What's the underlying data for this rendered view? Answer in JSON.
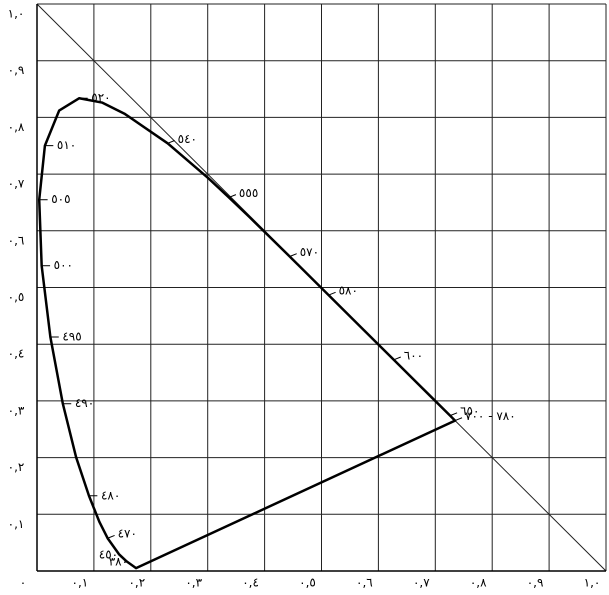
{
  "chart_data": {
    "type": "line",
    "x": [
      0.1741,
      0.1566,
      0.144,
      0.1241,
      0.1096,
      0.0913,
      0.0687,
      0.0454,
      0.0235,
      0.0082,
      0.0039,
      0.0139,
      0.0389,
      0.0743,
      0.1142,
      0.1547,
      0.2296,
      0.3016,
      0.3373,
      0.3731,
      0.4441,
      0.5125,
      0.627,
      0.6915,
      0.726,
      0.7347
    ],
    "series": [
      {
        "color": "#000000",
        "values": [
          0.005,
          0.0177,
          0.0297,
          0.0578,
          0.0868,
          0.1327,
          0.2007,
          0.295,
          0.4127,
          0.5384,
          0.6548,
          0.7502,
          0.812,
          0.8338,
          0.8262,
          0.8059,
          0.7543,
          0.6923,
          0.6589,
          0.6245,
          0.5547,
          0.4866,
          0.3725,
          0.3083,
          0.274,
          0.2653
        ],
        "point_labels": [
          "٣٨٠",
          "٤٥٠",
          null,
          "٤٧٠",
          null,
          "٤٨٠",
          null,
          "٤٩٠",
          "٤٩٥",
          "٥٠٠",
          "٥٠٥",
          "٥١٠",
          null,
          "٥٢٠",
          null,
          null,
          "٥٤٠",
          null,
          "٥٥٥",
          null,
          "٥٧٠",
          "٥٨٠",
          "٦٠٠",
          null,
          "٦٥٠",
          "٧٨٠ - ٧٠٠"
        ]
      }
    ],
    "xlim": [
      0,
      1
    ],
    "ylim": [
      0,
      1
    ],
    "xticks": [
      {
        "value": 0,
        "label": "٠"
      },
      {
        "value": 0.1,
        "label": "٠,١"
      },
      {
        "value": 0.2,
        "label": "٠,٢"
      },
      {
        "value": 0.3,
        "label": "٠,٣"
      },
      {
        "value": 0.4,
        "label": "٠,٤"
      },
      {
        "value": 0.5,
        "label": "٠,٥"
      },
      {
        "value": 0.6,
        "label": "٠,٦"
      },
      {
        "value": 0.7,
        "label": "٠,٧"
      },
      {
        "value": 0.8,
        "label": "٠,٨"
      },
      {
        "value": 0.9,
        "label": "٠,٩"
      },
      {
        "value": 1,
        "label": "١,٠"
      }
    ],
    "yticks": [
      {
        "value": 0.1,
        "label": "٠,١"
      },
      {
        "value": 0.2,
        "label": "٠,٢"
      },
      {
        "value": 0.3,
        "label": "٠,٣"
      },
      {
        "value": 0.4,
        "label": "٠,٤"
      },
      {
        "value": 0.5,
        "label": "٠,٥"
      },
      {
        "value": 0.6,
        "label": "٠,٦"
      },
      {
        "value": 0.7,
        "label": "٠,٧"
      },
      {
        "value": 0.8,
        "label": "٠,٨"
      },
      {
        "value": 0.9,
        "label": "٠,٩"
      },
      {
        "value": 1,
        "label": "١,٠"
      }
    ],
    "grid": true
  }
}
